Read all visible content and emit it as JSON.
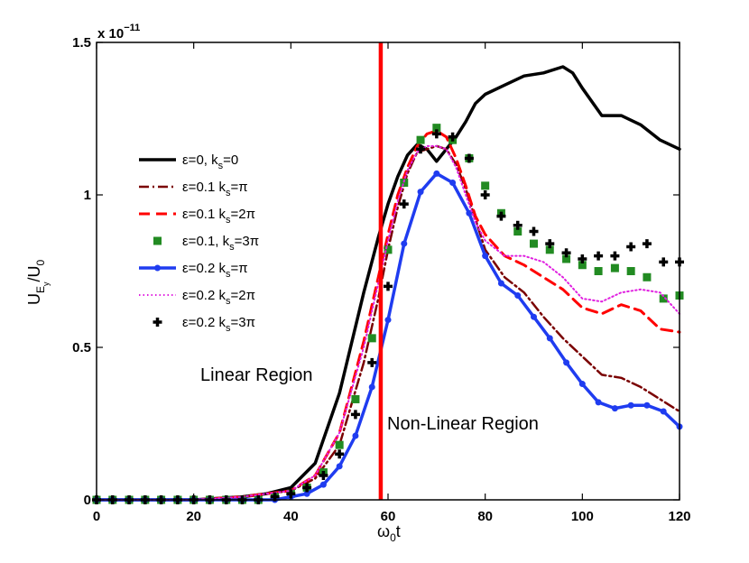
{
  "chart_data": {
    "type": "line",
    "title": "",
    "exponent_label": "x 10",
    "exponent_power": "−11",
    "xlabel": {
      "main": "ω",
      "sub": "0",
      "tail": "t"
    },
    "ylabel": {
      "main": "U",
      "sub1": "E",
      "sub2": "y",
      "mid": "/U",
      "sub3": "0"
    },
    "xlim": [
      0,
      120
    ],
    "ylim": [
      0,
      1.5
    ],
    "xticks": [
      0,
      20,
      40,
      60,
      80,
      100,
      120
    ],
    "yticks": [
      0,
      0.5,
      1,
      1.5
    ],
    "xtick_labels": [
      "0",
      "20",
      "40",
      "60",
      "80",
      "100",
      "120"
    ],
    "ytick_labels": [
      "0",
      "0.5",
      "1",
      "1.5"
    ],
    "grid": false,
    "vertical_line": {
      "x": 58.5,
      "color": "#ff0000"
    },
    "annotations": [
      {
        "text": "Linear Region",
        "x": 30.5,
        "y": 0.415
      },
      {
        "text": "Non-Linear Region",
        "x": 60,
        "y": 0.25
      }
    ],
    "legend_position": "left-middle",
    "series": [
      {
        "name": "eps0",
        "label": "ε=0, k",
        "label_sub": "s",
        "label_tail": "=0",
        "color": "#000000",
        "style": "solid",
        "width": 3.5,
        "marker": "none",
        "x": [
          0,
          10,
          20,
          30,
          35,
          40,
          45,
          50,
          55,
          58,
          60,
          62,
          64,
          66,
          68,
          70,
          72,
          74,
          76,
          78,
          80,
          84,
          88,
          92,
          96,
          98,
          100,
          104,
          108,
          112,
          116,
          120
        ],
        "y": [
          0,
          0,
          0,
          0.01,
          0.02,
          0.04,
          0.12,
          0.35,
          0.68,
          0.86,
          0.97,
          1.06,
          1.13,
          1.165,
          1.15,
          1.11,
          1.15,
          1.19,
          1.24,
          1.3,
          1.33,
          1.36,
          1.39,
          1.4,
          1.42,
          1.4,
          1.35,
          1.26,
          1.26,
          1.23,
          1.18,
          1.15
        ]
      },
      {
        "name": "eps01-pi",
        "label": "ε=0.1  k",
        "label_sub": "s",
        "label_tail": "=π",
        "color": "#7a0000",
        "style": "dashdot",
        "width": 2.5,
        "marker": "none",
        "x": [
          0,
          10,
          20,
          30,
          35,
          40,
          45,
          50,
          55,
          58,
          60,
          62,
          64,
          66,
          68,
          70,
          72,
          74,
          76,
          78,
          80,
          84,
          88,
          92,
          96,
          100,
          104,
          108,
          112,
          116,
          120
        ],
        "y": [
          0,
          0,
          0,
          0.01,
          0.02,
          0.03,
          0.07,
          0.18,
          0.45,
          0.66,
          0.82,
          0.96,
          1.07,
          1.14,
          1.15,
          1.16,
          1.15,
          1.1,
          1.02,
          0.92,
          0.82,
          0.73,
          0.68,
          0.6,
          0.53,
          0.47,
          0.41,
          0.4,
          0.37,
          0.33,
          0.29
        ]
      },
      {
        "name": "eps01-2pi",
        "label": "ε=0.1  k",
        "label_sub": "s",
        "label_tail": "=2π",
        "color": "#ff0000",
        "style": "dashed",
        "width": 3,
        "marker": "none",
        "x": [
          0,
          10,
          20,
          30,
          35,
          40,
          45,
          50,
          55,
          58,
          60,
          62,
          64,
          66,
          68,
          70,
          72,
          74,
          76,
          78,
          80,
          84,
          88,
          92,
          96,
          100,
          104,
          108,
          112,
          116,
          120
        ],
        "y": [
          0,
          0,
          0,
          0.01,
          0.02,
          0.03,
          0.08,
          0.22,
          0.52,
          0.73,
          0.87,
          1.0,
          1.09,
          1.16,
          1.2,
          1.21,
          1.19,
          1.12,
          1.03,
          0.93,
          0.87,
          0.8,
          0.77,
          0.73,
          0.69,
          0.63,
          0.61,
          0.64,
          0.62,
          0.56,
          0.55
        ]
      },
      {
        "name": "eps01-3pi",
        "label": "ε=0.1, k",
        "label_sub": "s",
        "label_tail": "=3π",
        "color": "#228b22",
        "style": "none",
        "width": 0,
        "marker": "square",
        "x": [
          0,
          3.3,
          6.7,
          10,
          13.3,
          16.7,
          20,
          23.3,
          26.7,
          30,
          33.3,
          36.7,
          40,
          43.3,
          46.7,
          50,
          53.3,
          56.7,
          60,
          63.3,
          66.7,
          70,
          73.3,
          76.7,
          80,
          83.3,
          86.7,
          90,
          93.3,
          96.7,
          100,
          103.3,
          106.7,
          110,
          113.3,
          116.7,
          120
        ],
        "y": [
          0,
          0,
          0,
          0,
          0,
          0,
          0,
          0,
          0,
          0,
          0,
          0.01,
          0.02,
          0.04,
          0.09,
          0.18,
          0.33,
          0.53,
          0.82,
          1.04,
          1.18,
          1.22,
          1.18,
          1.12,
          1.03,
          0.94,
          0.88,
          0.84,
          0.82,
          0.79,
          0.77,
          0.75,
          0.76,
          0.75,
          0.73,
          0.66,
          0.67
        ]
      },
      {
        "name": "eps02-pi",
        "label": "ε=0.2  k",
        "label_sub": "s",
        "label_tail": "=π",
        "color": "#1f3cf0",
        "style": "solid",
        "width": 3.5,
        "marker": "dot",
        "x": [
          0,
          3.3,
          6.7,
          10,
          13.3,
          16.7,
          20,
          23.3,
          26.7,
          30,
          33.3,
          36.7,
          40,
          43.3,
          46.7,
          50,
          53.3,
          56.7,
          60,
          63.3,
          66.7,
          70,
          73.3,
          76.7,
          80,
          83.3,
          86.7,
          90,
          93.3,
          96.7,
          100,
          103.3,
          106.7,
          110,
          113.3,
          116.7,
          120
        ],
        "y": [
          0,
          0,
          0,
          0,
          0,
          0,
          0,
          0,
          0,
          0,
          0,
          0,
          0.01,
          0.02,
          0.05,
          0.11,
          0.21,
          0.37,
          0.59,
          0.84,
          1.01,
          1.07,
          1.04,
          0.94,
          0.8,
          0.71,
          0.67,
          0.6,
          0.53,
          0.45,
          0.38,
          0.32,
          0.3,
          0.31,
          0.31,
          0.29,
          0.24
        ]
      },
      {
        "name": "eps02-2pi",
        "label": "ε=0.2 k",
        "label_sub": "s",
        "label_tail": "=2π",
        "color": "#e020e0",
        "style": "dotted",
        "width": 2,
        "marker": "none",
        "x": [
          0,
          10,
          20,
          30,
          35,
          40,
          45,
          50,
          55,
          58,
          60,
          62,
          64,
          66,
          68,
          70,
          72,
          74,
          76,
          78,
          80,
          84,
          88,
          92,
          96,
          100,
          104,
          108,
          112,
          116,
          120
        ],
        "y": [
          0,
          0,
          0,
          0.01,
          0.02,
          0.03,
          0.08,
          0.22,
          0.5,
          0.71,
          0.85,
          0.98,
          1.08,
          1.14,
          1.16,
          1.16,
          1.15,
          1.09,
          1.0,
          0.91,
          0.85,
          0.8,
          0.8,
          0.78,
          0.73,
          0.66,
          0.65,
          0.68,
          0.69,
          0.68,
          0.61
        ]
      },
      {
        "name": "eps02-3pi",
        "label": "ε=0.2 k",
        "label_sub": "s",
        "label_tail": "=3π",
        "color": "#000000",
        "style": "none",
        "width": 0,
        "marker": "plus",
        "x": [
          0,
          3.3,
          6.7,
          10,
          13.3,
          16.7,
          20,
          23.3,
          26.7,
          30,
          33.3,
          36.7,
          40,
          43.3,
          46.7,
          50,
          53.3,
          56.7,
          60,
          63.3,
          66.7,
          70,
          73.3,
          76.7,
          80,
          83.3,
          86.7,
          90,
          93.3,
          96.7,
          100,
          103.3,
          106.7,
          110,
          113.3,
          116.7,
          120
        ],
        "y": [
          0,
          0,
          0,
          0,
          0,
          0,
          0,
          0,
          0,
          0,
          0,
          0.01,
          0.02,
          0.04,
          0.08,
          0.15,
          0.28,
          0.45,
          0.7,
          0.97,
          1.15,
          1.2,
          1.19,
          1.12,
          1.0,
          0.93,
          0.9,
          0.88,
          0.84,
          0.81,
          0.79,
          0.8,
          0.8,
          0.83,
          0.84,
          0.78,
          0.78
        ]
      }
    ]
  }
}
